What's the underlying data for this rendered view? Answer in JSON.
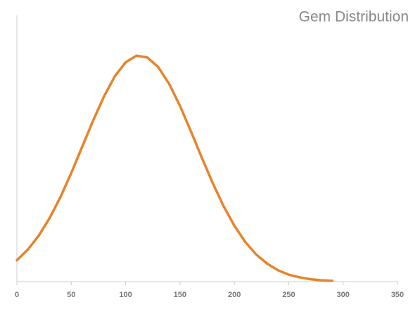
{
  "chart_data": {
    "type": "line",
    "title": "Gem Distribution",
    "x": [
      0,
      10,
      20,
      30,
      40,
      50,
      60,
      70,
      80,
      90,
      100,
      110,
      120,
      130,
      140,
      150,
      160,
      170,
      180,
      190,
      200,
      210,
      220,
      230,
      240,
      250,
      260,
      270,
      280,
      290
    ],
    "series": [
      {
        "color": "#e8832a",
        "values": [
          0.08,
          0.12,
          0.172,
          0.238,
          0.317,
          0.408,
          0.506,
          0.604,
          0.695,
          0.771,
          0.824,
          0.849,
          0.842,
          0.806,
          0.743,
          0.66,
          0.565,
          0.466,
          0.371,
          0.284,
          0.21,
          0.149,
          0.102,
          0.068,
          0.043,
          0.026,
          0.016,
          0.009,
          0.005,
          0.003
        ]
      }
    ],
    "xlim": [
      0,
      350
    ],
    "xticks": [
      0,
      50,
      100,
      150,
      200,
      250,
      300,
      350
    ],
    "ylim": [
      0,
      1
    ]
  }
}
